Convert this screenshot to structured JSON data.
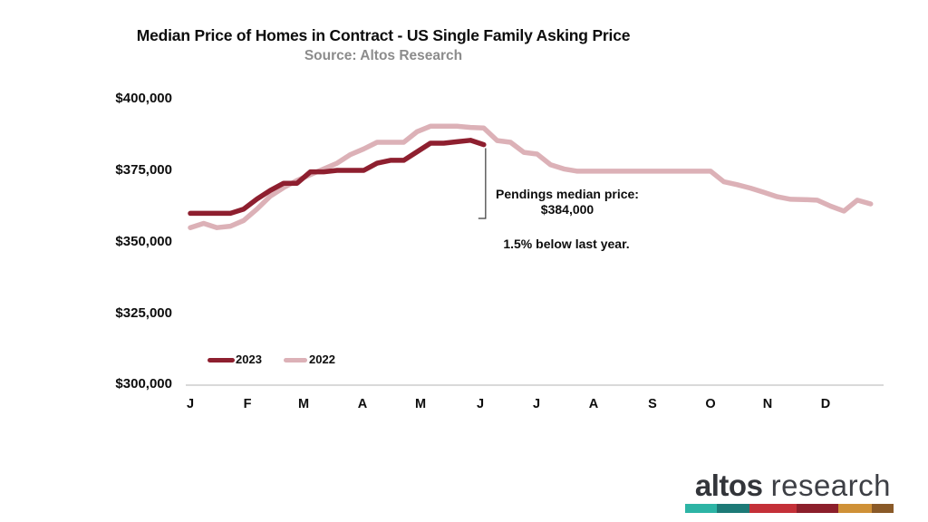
{
  "header": {
    "title": "Median Price of Homes in Contract - US Single Family Asking Price",
    "subtitle": "Source: Altos Research"
  },
  "chart_data": {
    "type": "line",
    "title": "Median Price of Homes in Contract - US Single Family Asking Price",
    "subtitle": "Source: Altos Research",
    "x_unit": "weeks, January through December",
    "x_tick_labels": [
      "J",
      "F",
      "M",
      "A",
      "M",
      "J",
      "J",
      "A",
      "S",
      "O",
      "N",
      "D"
    ],
    "y_tick_labels": [
      "$400,000",
      "$375,000",
      "$350,000",
      "$325,000",
      "$300,000"
    ],
    "ylim": [
      300000,
      400000
    ],
    "grid": false,
    "legend_position": "inside-bottom-left",
    "series": [
      {
        "name": "2023",
        "color": "#8e1f2f",
        "values": [
          360000,
          360000,
          360000,
          360000,
          361500,
          365000,
          368000,
          370500,
          370500,
          374500,
          374500,
          375000,
          375000,
          375000,
          377500,
          378500,
          378500,
          381500,
          384500,
          384500,
          385000,
          385500,
          384000
        ]
      },
      {
        "name": "2022",
        "color": "#dcb1b7",
        "values": [
          355000,
          356500,
          355000,
          355500,
          357500,
          361500,
          366000,
          369000,
          371500,
          373500,
          375500,
          377500,
          380500,
          382500,
          384800,
          384800,
          384800,
          388500,
          390400,
          390400,
          390400,
          390000,
          389800,
          385400,
          384800,
          381300,
          380700,
          377000,
          375500,
          374700,
          374700,
          374700,
          374700,
          374700,
          374700,
          374700,
          374700,
          374700,
          374700,
          374700,
          371000,
          370000,
          368800,
          367300,
          365800,
          364900,
          364800,
          364600,
          362500,
          360800,
          364600,
          363300
        ]
      }
    ],
    "annotation": {
      "label": "Pendings median price:",
      "value": "$384,000",
      "note": "1.5% below last year."
    }
  },
  "legend": {
    "items": [
      {
        "label": "2023",
        "color": "#8e1f2f"
      },
      {
        "label": "2022",
        "color": "#dcb1b7"
      }
    ]
  },
  "colors": {
    "axis_line": "#d9d9d9",
    "leader_line": "#3a3a3a"
  },
  "logo": {
    "bold": "altos",
    "light": "research",
    "bar_colors": [
      "#2db4a5",
      "#1d7a77",
      "#c43038",
      "#8c1f2b",
      "#cf9137",
      "#8a5a28"
    ]
  }
}
